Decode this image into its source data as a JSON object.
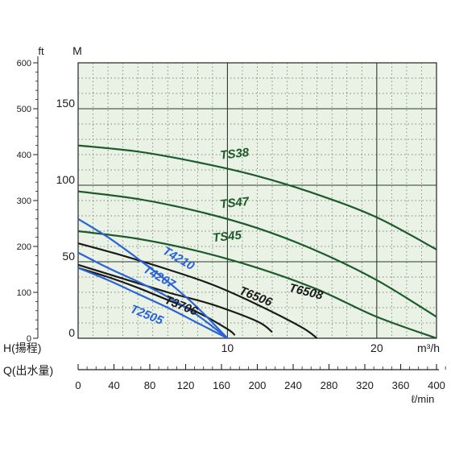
{
  "chart_data": {
    "type": "line",
    "title": "",
    "xlabel": "H(揚程)",
    "x_unit": "m³/h",
    "y_unit_ft": "ft",
    "y_unit_m": "M",
    "xlim": [
      0,
      24
    ],
    "ylim_m": [
      0,
      180
    ],
    "ylim_ft": [
      0,
      600
    ],
    "x_ticks_m3h": [
      "10",
      "20"
    ],
    "y_ticks_m": [
      "0",
      "50",
      "100",
      "150"
    ],
    "y_ticks_ft": [
      "0",
      "100",
      "200",
      "300",
      "400",
      "500",
      "600"
    ],
    "flow_axis": {
      "label": "Q(出水量)",
      "unit": "ℓ/min",
      "ticks": [
        "0",
        "40",
        "80",
        "120",
        "160",
        "200",
        "240",
        "280",
        "320",
        "360",
        "400"
      ]
    },
    "grid": true,
    "colors": {
      "background": "#e9f2e4",
      "green": "#1d5a2c",
      "black": "#1a1a1a",
      "blue": "#2a62d8"
    },
    "series": [
      {
        "name": "TS38",
        "color": "green",
        "x": [
          0,
          4,
          8,
          12,
          16,
          20,
          24
        ],
        "y": [
          126,
          122,
          115,
          106,
          94,
          79,
          58
        ]
      },
      {
        "name": "TS47",
        "color": "green",
        "x": [
          0,
          4,
          8,
          12,
          16,
          20,
          24
        ],
        "y": [
          96,
          91,
          83,
          72,
          57,
          38,
          14
        ]
      },
      {
        "name": "TS45",
        "color": "green",
        "x": [
          0,
          4,
          8,
          12,
          16,
          20,
          24
        ],
        "y": [
          70,
          65,
          57,
          46,
          32,
          14,
          0
        ]
      },
      {
        "name": "T6508",
        "color": "black",
        "x": [
          0,
          3,
          6,
          9,
          12,
          15,
          16
        ],
        "y": [
          62,
          54,
          45,
          35,
          22,
          7,
          0
        ]
      },
      {
        "name": "T6506",
        "color": "black",
        "x": [
          0,
          3,
          6,
          9,
          12,
          13
        ],
        "y": [
          48,
          39,
          30,
          22,
          11,
          4
        ]
      },
      {
        "name": "T3706",
        "color": "black",
        "x": [
          0,
          2,
          4,
          6,
          8,
          10,
          10.5
        ],
        "y": [
          46,
          40,
          33,
          25,
          17,
          6,
          2
        ]
      },
      {
        "name": "T4210",
        "color": "blue",
        "x": [
          0,
          2,
          4,
          6,
          8,
          10
        ],
        "y": [
          78,
          66,
          52,
          37,
          20,
          0
        ]
      },
      {
        "name": "T4207",
        "color": "blue",
        "x": [
          0,
          2,
          4,
          6,
          8,
          10
        ],
        "y": [
          56,
          46,
          37,
          27,
          15,
          0
        ]
      },
      {
        "name": "T2505",
        "color": "blue",
        "x": [
          0,
          2,
          4,
          6,
          8,
          10
        ],
        "y": [
          46,
          38,
          29,
          20,
          10,
          0
        ]
      }
    ]
  }
}
